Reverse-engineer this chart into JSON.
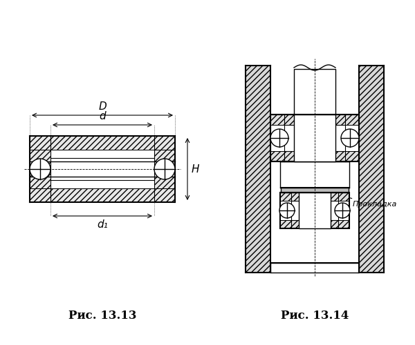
{
  "fig_width": 6.0,
  "fig_height": 5.0,
  "bg_color": "#ffffff",
  "line_color": "#000000",
  "caption1": "Рис. 13.13",
  "caption2": "Рис. 13.14",
  "label_D": "D",
  "label_d": "d",
  "label_H": "H",
  "label_d1": "d₁",
  "label_prokladka": "Прокладка"
}
